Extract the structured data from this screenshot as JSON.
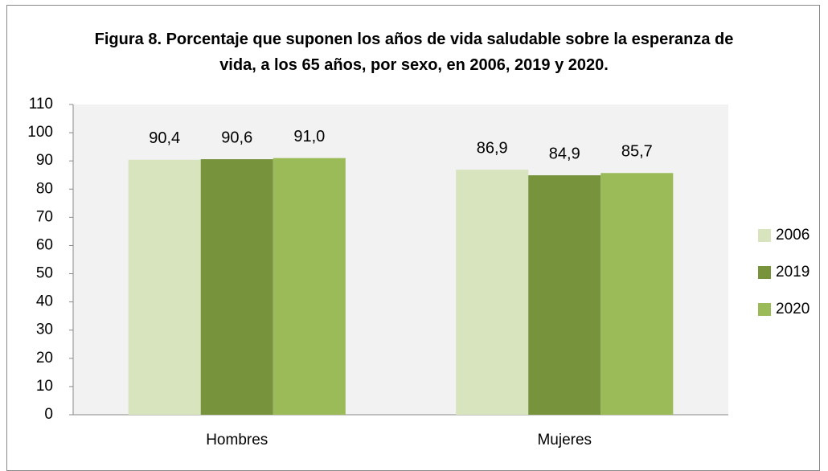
{
  "chart_data": {
    "type": "bar",
    "title": "Figura 8. Porcentaje que suponen los años de vida saludable sobre la esperanza de vida, a los 65 años, por sexo, en 2006, 2019 y 2020.",
    "categories": [
      "Hombres",
      "Mujeres"
    ],
    "series": [
      {
        "name": "2006",
        "color": "#d7e4bd",
        "values": [
          90.4,
          86.9
        ],
        "value_labels": [
          "90,4",
          "86,9"
        ]
      },
      {
        "name": "2019",
        "color": "#77933c",
        "values": [
          90.6,
          84.9
        ],
        "value_labels": [
          "90,6",
          "84,9"
        ]
      },
      {
        "name": "2020",
        "color": "#9bbb59",
        "values": [
          91.0,
          85.7
        ],
        "value_labels": [
          "91,0",
          "85,7"
        ]
      }
    ],
    "ylim": [
      0,
      110
    ],
    "yticks": [
      0,
      10,
      20,
      30,
      40,
      50,
      60,
      70,
      80,
      90,
      100,
      110
    ],
    "legend": "right"
  }
}
